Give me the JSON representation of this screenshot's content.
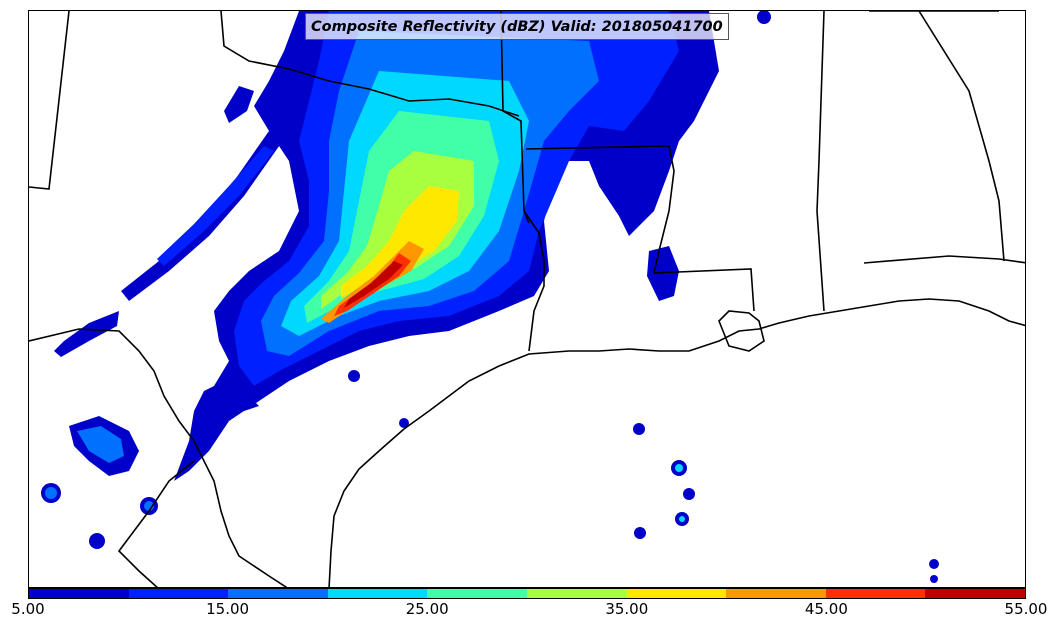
{
  "title": "Composite Reflectivity (dBZ) Valid: 201805041700",
  "colorbar": {
    "colors": [
      "#0000c8",
      "#0020ff",
      "#0070ff",
      "#00d8ff",
      "#40ffa8",
      "#a8ff40",
      "#ffe800",
      "#ff9800",
      "#ff3000",
      "#c00000"
    ],
    "tick_labels": [
      "5.00",
      "15.00",
      "25.00",
      "35.00",
      "45.00",
      "55.00"
    ]
  }
}
